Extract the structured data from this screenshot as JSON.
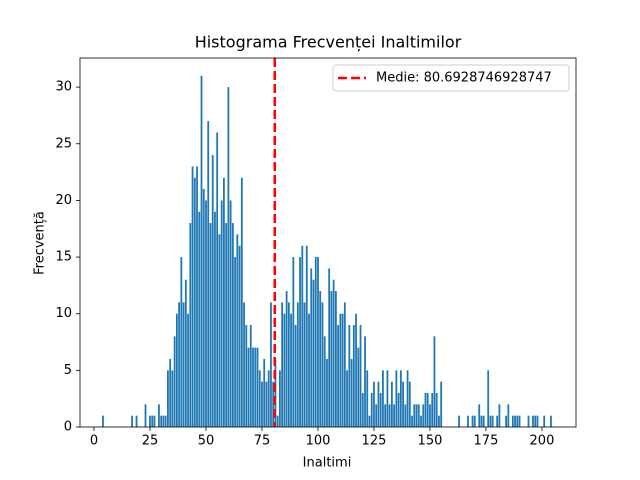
{
  "chart_data": {
    "type": "bar",
    "title": "Histograma Frecvenței Inaltimilor",
    "x_label": "Inaltimi",
    "y_label": "Frecvență",
    "x": [
      4,
      17,
      19,
      23,
      25,
      26,
      27,
      29,
      30,
      31,
      32,
      33,
      34,
      35,
      36,
      37,
      38,
      39,
      40,
      41,
      42,
      43,
      44,
      45,
      46,
      47,
      48,
      49,
      50,
      51,
      52,
      53,
      54,
      55,
      56,
      57,
      58,
      59,
      60,
      61,
      62,
      63,
      64,
      65,
      66,
      67,
      68,
      69,
      70,
      71,
      72,
      73,
      74,
      75,
      76,
      77,
      78,
      79,
      80,
      81,
      82,
      83,
      84,
      85,
      86,
      87,
      88,
      89,
      90,
      91,
      92,
      93,
      94,
      95,
      96,
      97,
      98,
      99,
      100,
      101,
      102,
      103,
      104,
      105,
      106,
      107,
      108,
      109,
      110,
      111,
      112,
      113,
      114,
      115,
      116,
      117,
      118,
      119,
      120,
      121,
      122,
      123,
      124,
      125,
      126,
      127,
      128,
      129,
      130,
      131,
      132,
      133,
      134,
      135,
      136,
      137,
      138,
      139,
      140,
      141,
      142,
      143,
      144,
      145,
      146,
      147,
      148,
      149,
      150,
      151,
      152,
      153,
      154,
      155,
      163,
      167,
      169,
      170,
      172,
      173,
      174,
      176,
      177,
      178,
      180,
      181,
      184,
      185,
      187,
      188,
      189,
      190,
      194,
      196,
      197,
      198,
      201,
      204
    ],
    "values": [
      1,
      1,
      1,
      2,
      1,
      1,
      1,
      2,
      1,
      1,
      1,
      5,
      6,
      5,
      8,
      10,
      11,
      15,
      11,
      13,
      10,
      18,
      23,
      22,
      23,
      19,
      31,
      21,
      20,
      27,
      18,
      24,
      19,
      26,
      17,
      20,
      22,
      18,
      30,
      20,
      18,
      15,
      17,
      16,
      22,
      11,
      9,
      7,
      9,
      7,
      7,
      7,
      5,
      4,
      6,
      4,
      5,
      11,
      4,
      6,
      1,
      5,
      11,
      10,
      12,
      11,
      10,
      15,
      9,
      11,
      15,
      16,
      11,
      16,
      10,
      14,
      13,
      15,
      15,
      12,
      11,
      8,
      6,
      14,
      12,
      13,
      12,
      9,
      10,
      10,
      11,
      5,
      9,
      6,
      9,
      10,
      7,
      9,
      3,
      8,
      5,
      1,
      3,
      4,
      2,
      4,
      3,
      5,
      2,
      5,
      2,
      4,
      2,
      5,
      3,
      5,
      4,
      2,
      5,
      4,
      1,
      2,
      2,
      2,
      1,
      2,
      3,
      3,
      2,
      3,
      8,
      3,
      1,
      4,
      1,
      1,
      1,
      1,
      2,
      1,
      1,
      5,
      1,
      1,
      1,
      2,
      1,
      2,
      1,
      1,
      1,
      1,
      1,
      1,
      1,
      1,
      1,
      1
    ],
    "color": "#1f77b4",
    "xlim": [
      -6.25,
      215.2
    ],
    "xticks": [
      0,
      25,
      50,
      75,
      100,
      125,
      150,
      175,
      200
    ],
    "ylim": [
      0,
      32.57
    ],
    "yticks": [
      0,
      5,
      10,
      15,
      20,
      25,
      30
    ],
    "grid": false,
    "legend": "upper right",
    "mean_line": {
      "value": 80.6928746928747,
      "label": "Medie: 80.6928746928747",
      "color": "#ff0000"
    }
  }
}
